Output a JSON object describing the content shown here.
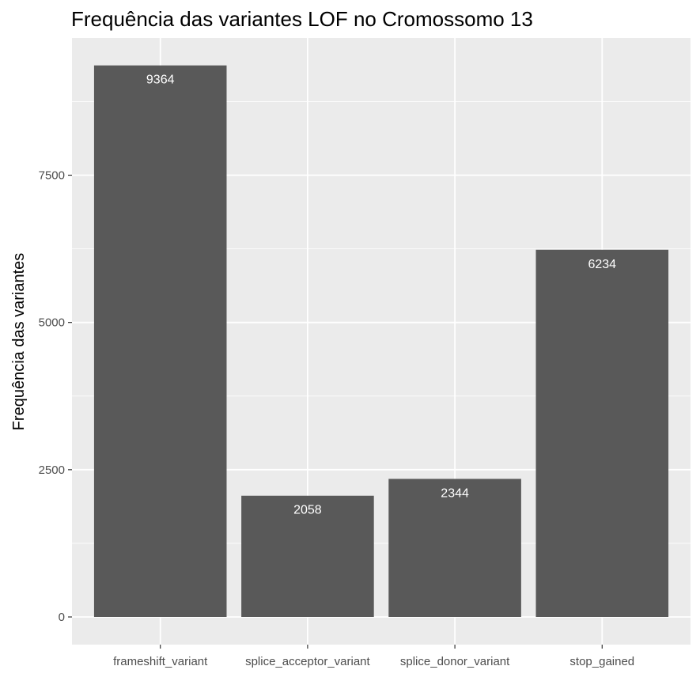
{
  "chart_data": {
    "type": "bar",
    "title": "Frequência das variantes LOF no Cromossomo 13",
    "xlabel": "",
    "ylabel": "Frequência das variantes",
    "categories": [
      "frameshift_variant",
      "splice_acceptor_variant",
      "splice_donor_variant",
      "stop_gained"
    ],
    "values": [
      9364,
      2058,
      2344,
      6234
    ],
    "data_labels": [
      "9364",
      "2058",
      "2344",
      "6234"
    ],
    "ylim": [
      -470,
      9830
    ],
    "yticks": [
      0,
      2500,
      5000,
      7500
    ],
    "ytick_labels": [
      "0",
      "2500",
      "5000",
      "7500"
    ],
    "grid": true,
    "legend": "none"
  },
  "colors": {
    "panel_background": "#ebebeb",
    "grid_major": "#ffffff",
    "bar_fill": "#595959",
    "bar_label": "#ffffff",
    "tick_label": "#4d4d4d"
  }
}
